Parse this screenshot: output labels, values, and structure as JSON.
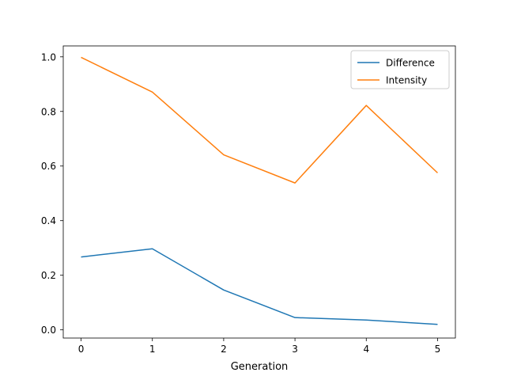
{
  "chart_data": {
    "type": "line",
    "title": "",
    "xlabel": "Generation",
    "ylabel": "",
    "x": [
      0,
      1,
      2,
      3,
      4,
      5
    ],
    "xticks": [
      "0",
      "1",
      "2",
      "3",
      "4",
      "5"
    ],
    "yticks": [
      "0.0",
      "0.2",
      "0.4",
      "0.6",
      "0.8",
      "1.0"
    ],
    "xlim": [
      -0.25,
      5.25
    ],
    "ylim": [
      -0.03,
      1.04
    ],
    "grid": false,
    "legend_position": "top-right",
    "series": [
      {
        "name": "Difference",
        "color": "#1f77b4",
        "values": [
          0.267,
          0.297,
          0.146,
          0.045,
          0.036,
          0.02
        ]
      },
      {
        "name": "Intensity",
        "color": "#ff7f0e",
        "values": [
          0.998,
          0.871,
          0.641,
          0.538,
          0.822,
          0.575
        ]
      }
    ]
  }
}
